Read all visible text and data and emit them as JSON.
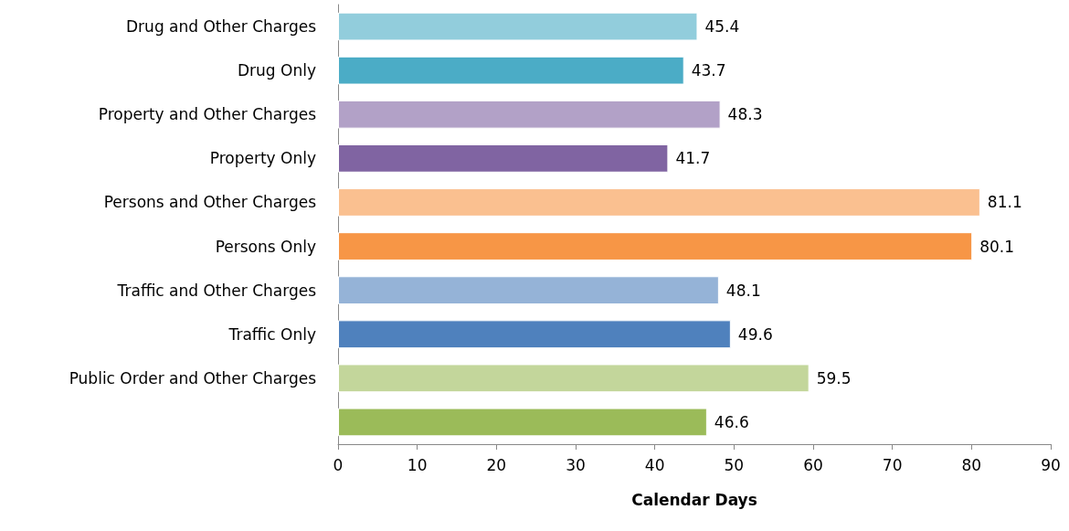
{
  "chart_data": {
    "type": "bar",
    "orientation": "horizontal",
    "xlabel": "Calendar Days",
    "categories": [
      "Drug and Other Charges",
      "Drug Only",
      "Property and Other Charges",
      "Property Only",
      "Persons and Other Charges",
      "Persons Only",
      "Traffic and Other Charges",
      "Traffic Only",
      "Public Order and Other Charges",
      null
    ],
    "values": [
      45.4,
      43.7,
      48.3,
      41.7,
      81.1,
      80.1,
      48.1,
      49.6,
      59.5,
      46.6
    ],
    "colors": [
      "#92cddc",
      "#4bacc6",
      "#b2a1c7",
      "#8064a2",
      "#fac090",
      "#f79646",
      "#95b3d7",
      "#4f81bd",
      "#c3d69b",
      "#9bbb59"
    ],
    "xlim": [
      0,
      90
    ],
    "xticks": [
      0,
      10,
      20,
      30,
      40,
      50,
      60,
      70,
      80,
      90
    ],
    "data_labels": true
  }
}
